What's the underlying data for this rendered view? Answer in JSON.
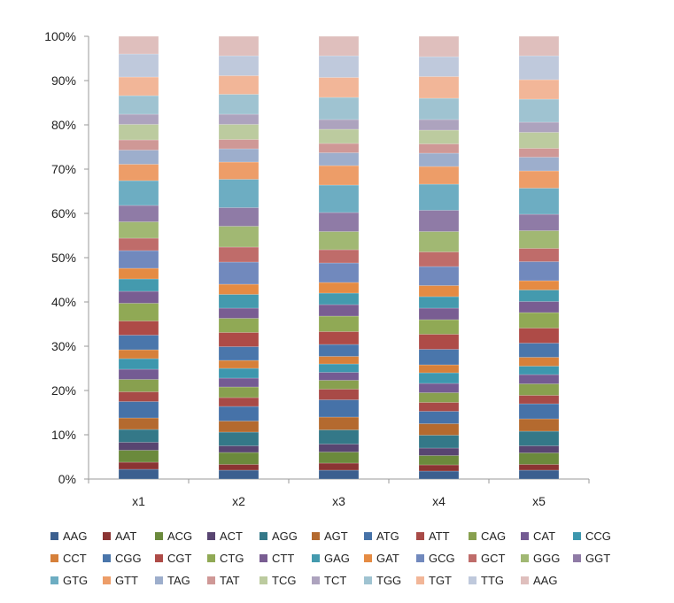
{
  "chart_data": {
    "type": "bar",
    "stacked": "percent",
    "title": "",
    "xlabel": "",
    "ylabel": "",
    "ylim": [
      0,
      100
    ],
    "yticks": [
      "0%",
      "10%",
      "20%",
      "30%",
      "40%",
      "50%",
      "60%",
      "70%",
      "80%",
      "90%",
      "100%"
    ],
    "categories": [
      "x1",
      "x2",
      "x3",
      "x4",
      "x5"
    ],
    "legend_position": "bottom",
    "grid": false,
    "series": [
      {
        "name": "AAG",
        "color": "#3b5f8f",
        "values": [
          2.2,
          2.0,
          2.0,
          1.8,
          2.0
        ]
      },
      {
        "name": "AAT",
        "color": "#8b3433",
        "values": [
          1.6,
          1.3,
          1.6,
          1.4,
          1.3
        ]
      },
      {
        "name": "ACG",
        "color": "#6b8a3c",
        "values": [
          2.7,
          2.7,
          2.5,
          2.1,
          2.6
        ]
      },
      {
        "name": "ACT",
        "color": "#584571",
        "values": [
          1.8,
          1.5,
          1.8,
          1.7,
          1.6
        ]
      },
      {
        "name": "AGG",
        "color": "#347888",
        "values": [
          2.9,
          3.1,
          3.2,
          2.9,
          3.3
        ]
      },
      {
        "name": "AGT",
        "color": "#b46a2f",
        "values": [
          2.6,
          2.5,
          2.9,
          2.6,
          2.8
        ]
      },
      {
        "name": "ATG",
        "color": "#4672a8",
        "values": [
          3.7,
          3.3,
          3.9,
          2.8,
          3.4
        ]
      },
      {
        "name": "ATT",
        "color": "#a84a47",
        "values": [
          2.2,
          2.0,
          2.4,
          2.0,
          1.9
        ]
      },
      {
        "name": "CAG",
        "color": "#88a04f",
        "values": [
          2.8,
          2.4,
          2.0,
          2.2,
          2.6
        ]
      },
      {
        "name": "CAT",
        "color": "#745b93",
        "values": [
          2.3,
          2.0,
          1.8,
          2.1,
          2.1
        ]
      },
      {
        "name": "CCG",
        "color": "#3d97ae",
        "values": [
          2.4,
          2.2,
          1.9,
          2.4,
          1.9
        ]
      },
      {
        "name": "CCT",
        "color": "#d6803a",
        "values": [
          2.0,
          1.8,
          1.7,
          1.8,
          2.0
        ]
      },
      {
        "name": "CGG",
        "color": "#4a76ab",
        "values": [
          3.3,
          3.1,
          2.7,
          3.5,
          3.2
        ]
      },
      {
        "name": "CGT",
        "color": "#ae4b47",
        "values": [
          3.2,
          3.2,
          2.9,
          3.4,
          3.4
        ]
      },
      {
        "name": "CTG",
        "color": "#90a955",
        "values": [
          4.0,
          3.2,
          3.5,
          3.3,
          3.5
        ]
      },
      {
        "name": "CTT",
        "color": "#795d92",
        "values": [
          2.7,
          2.3,
          2.6,
          2.6,
          2.5
        ]
      },
      {
        "name": "GAG",
        "color": "#449aae",
        "values": [
          2.8,
          3.1,
          2.6,
          2.6,
          2.6
        ]
      },
      {
        "name": "GAT",
        "color": "#e58b43",
        "values": [
          2.4,
          2.3,
          2.4,
          2.5,
          2.1
        ]
      },
      {
        "name": "GCG",
        "color": "#7189bd",
        "values": [
          4.0,
          5.0,
          4.4,
          4.3,
          4.3
        ]
      },
      {
        "name": "GCT",
        "color": "#bf6c6a",
        "values": [
          2.8,
          3.4,
          3.0,
          3.3,
          3.0
        ]
      },
      {
        "name": "GGG",
        "color": "#a1b873",
        "values": [
          3.7,
          4.7,
          4.1,
          4.6,
          4.0
        ]
      },
      {
        "name": "GGT",
        "color": "#8f7ba6",
        "values": [
          3.7,
          4.2,
          4.3,
          4.8,
          3.7
        ]
      },
      {
        "name": "GTG",
        "color": "#6dadc2",
        "values": [
          5.6,
          6.4,
          6.2,
          5.9,
          5.9
        ]
      },
      {
        "name": "GTT",
        "color": "#ed9d68",
        "values": [
          3.7,
          3.9,
          4.4,
          4.0,
          3.9
        ]
      },
      {
        "name": "TAG",
        "color": "#9daecc",
        "values": [
          3.2,
          3.0,
          2.9,
          3.0,
          3.1
        ]
      },
      {
        "name": "TAT",
        "color": "#cf9896",
        "values": [
          2.3,
          2.1,
          2.1,
          2.1,
          2.0
        ]
      },
      {
        "name": "TCG",
        "color": "#bccb9f",
        "values": [
          3.5,
          3.4,
          3.2,
          3.1,
          3.6
        ]
      },
      {
        "name": "TCT",
        "color": "#ada3be",
        "values": [
          2.3,
          2.3,
          2.2,
          2.4,
          2.3
        ]
      },
      {
        "name": "TGG",
        "color": "#9fc3d1",
        "values": [
          4.2,
          4.5,
          5.0,
          4.8,
          5.2
        ]
      },
      {
        "name": "TGT",
        "color": "#f2b698",
        "values": [
          4.2,
          4.2,
          4.5,
          4.9,
          4.4
        ]
      },
      {
        "name": "TTG",
        "color": "#bfc9dc",
        "values": [
          5.2,
          4.5,
          4.9,
          4.5,
          5.4
        ]
      },
      {
        "name": "AAG",
        "color": "#dfbfbd",
        "values": [
          4.0,
          4.4,
          4.4,
          4.6,
          4.4
        ]
      }
    ]
  }
}
